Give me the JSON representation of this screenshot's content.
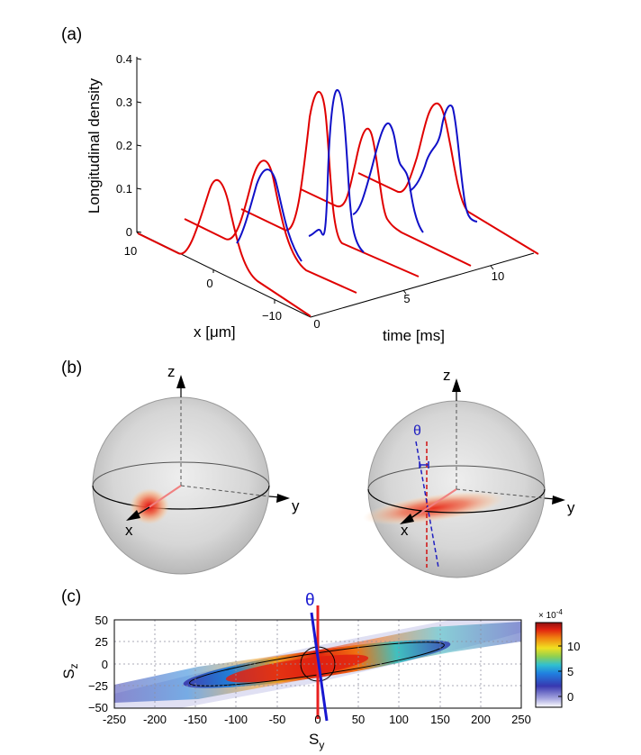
{
  "panels": {
    "a": {
      "label": "(a)",
      "ylabel": "Longitudinal density",
      "xlabel": "x [μm]",
      "tlabel": "time [ms]",
      "z_ticks": [
        "0",
        "0.1",
        "0.2",
        "0.3",
        "0.4"
      ],
      "x_ticks": [
        "10",
        "0",
        "−10"
      ],
      "t_ticks": [
        "0",
        "5",
        "10"
      ]
    },
    "b": {
      "label": "(b)",
      "left": {
        "axis_z": "z",
        "axis_y": "y",
        "axis_x": "x"
      },
      "right": {
        "axis_z": "z",
        "axis_y": "y",
        "axis_x": "x",
        "angle": "θ"
      }
    },
    "c": {
      "label": "(c)",
      "xlabel": "S",
      "xlabel_sub": "y",
      "ylabel": "S",
      "ylabel_sub": "z",
      "angle": "θ",
      "cb_exponent_base": "× 10",
      "cb_exponent_power": "-4",
      "cb_ticks": [
        "0",
        "5",
        "10"
      ]
    }
  },
  "chart_data": [
    {
      "type": "line",
      "panel": "(a)",
      "ylabel": "Longitudinal density",
      "xlabel": "x [μm]",
      "zlabel": "time [ms]",
      "zlim": [
        0,
        0.4
      ],
      "xlim": [
        -12,
        12
      ],
      "tlim": [
        0,
        13
      ],
      "series": [
        {
          "color": "#e00000",
          "times_ms": [
            0,
            2,
            4,
            6,
            8,
            10
          ],
          "peaks": [
            0.11,
            0.16,
            0.31,
            0.25,
            0.23,
            0.23
          ]
        },
        {
          "color": "#1010c8",
          "times_ms": [
            2,
            4,
            6,
            8
          ],
          "peaks": [
            0.15,
            0.3,
            0.24,
            0.23
          ]
        }
      ]
    },
    {
      "type": "heatmap",
      "panel": "(c)",
      "xlabel": "S_y",
      "ylabel": "S_z",
      "xlim": [
        -250,
        250
      ],
      "ylim": [
        -50,
        50
      ],
      "xticks": [
        -250,
        -200,
        -150,
        -100,
        -50,
        0,
        50,
        100,
        150,
        200,
        250
      ],
      "yticks": [
        -50,
        -25,
        0,
        25,
        50
      ],
      "colorbar": {
        "min": 0,
        "max": 0.0014,
        "ticks": [
          0,
          0.0005,
          0.001
        ],
        "scale": "× 10^-4"
      },
      "tilt_angle_label": "θ",
      "grid": true
    }
  ]
}
